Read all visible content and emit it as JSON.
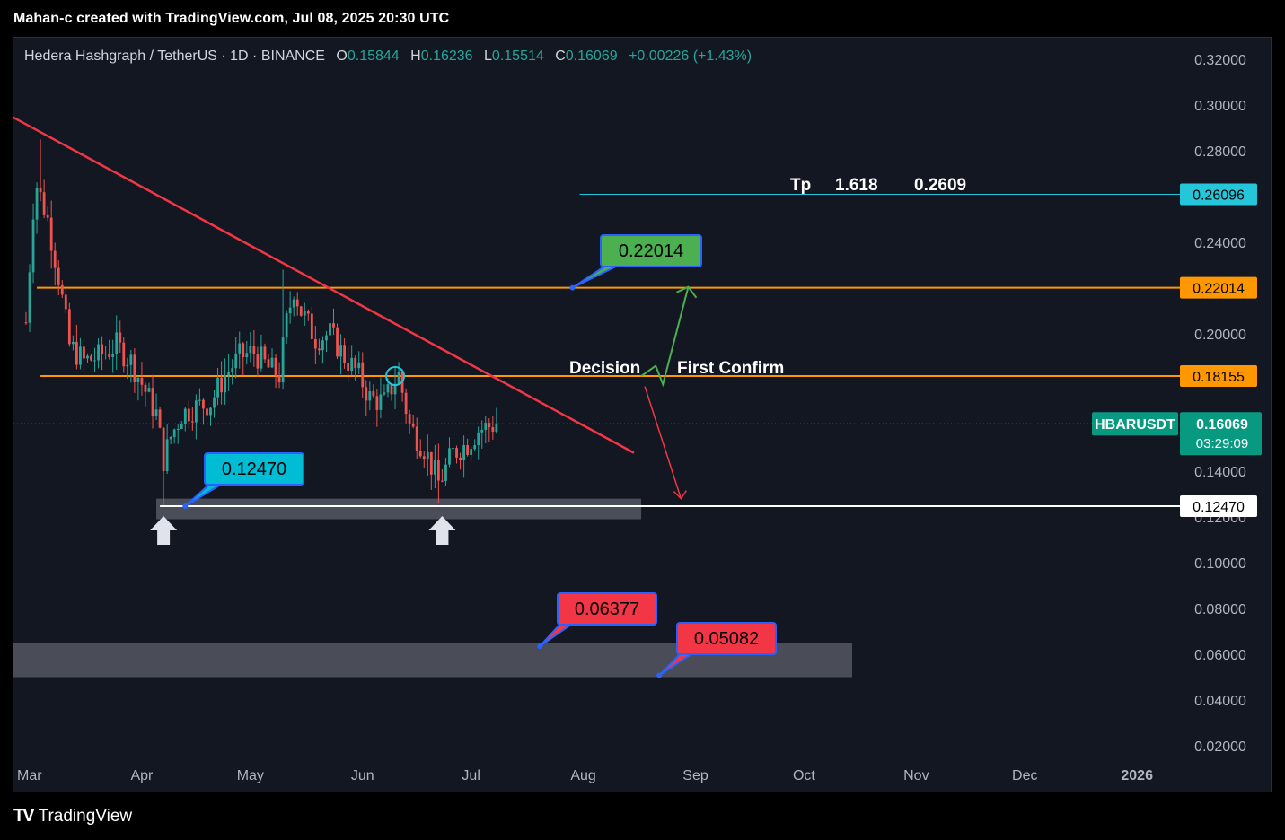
{
  "caption": "Mahan-c created with TradingView.com, Jul 08, 2025 20:30 UTC",
  "legend": {
    "symbol": "Hedera Hashgraph / TetherUS · 1D · BINANCE",
    "o_label": "O",
    "o": "0.15844",
    "h_label": "H",
    "h": "0.16236",
    "l_label": "L",
    "l": "0.15514",
    "c_label": "C",
    "c": "0.16069",
    "change": "+0.00226 (+1.43%)"
  },
  "brand": {
    "logo": "TV",
    "name": "TradingView"
  },
  "colors": {
    "bg": "#131722",
    "up": "#26a69a",
    "down": "#ef5350",
    "orange": "#ff9800",
    "trend": "#f23645",
    "green_arrow": "#4caf50",
    "cyan": "#26c6da",
    "label_green": "#4caf50",
    "label_red": "#f23645",
    "label_blue": "#00bcd4"
  },
  "chart_data": {
    "type": "candlestick",
    "symbol": "HBARUSDT",
    "ylim": [
      0.015,
      0.33
    ],
    "y_ticks": [
      "0.32000",
      "0.30000",
      "0.28000",
      "0.24000",
      "0.20000",
      "0.14000",
      "0.10000",
      "0.08000",
      "0.06000",
      "0.04000",
      "0.02000"
    ],
    "x_ticks": [
      {
        "label": "Mar",
        "date": "2025-03-01"
      },
      {
        "label": "Apr",
        "date": "2025-04-01"
      },
      {
        "label": "May",
        "date": "2025-05-01"
      },
      {
        "label": "Jun",
        "date": "2025-06-01"
      },
      {
        "label": "Jul",
        "date": "2025-07-01"
      },
      {
        "label": "Aug",
        "date": "2025-08-01"
      },
      {
        "label": "Sep",
        "date": "2025-09-01"
      },
      {
        "label": "Oct",
        "date": "2025-10-01"
      },
      {
        "label": "Nov",
        "date": "2025-11-01"
      },
      {
        "label": "Dec",
        "date": "2025-12-01"
      },
      {
        "label": "2026",
        "date": "2026-01-01"
      }
    ],
    "close_path": [
      [
        "2025-02-28",
        0.205
      ],
      [
        "2025-03-02",
        0.255
      ],
      [
        "2025-03-03",
        0.265
      ],
      [
        "2025-03-06",
        0.25
      ],
      [
        "2025-03-09",
        0.225
      ],
      [
        "2025-03-12",
        0.195
      ],
      [
        "2025-03-16",
        0.188
      ],
      [
        "2025-03-20",
        0.19
      ],
      [
        "2025-03-25",
        0.195
      ],
      [
        "2025-03-29",
        0.188
      ],
      [
        "2025-04-02",
        0.175
      ],
      [
        "2025-04-05",
        0.165
      ],
      [
        "2025-04-07",
        0.145
      ],
      [
        "2025-04-09",
        0.155
      ],
      [
        "2025-04-12",
        0.165
      ],
      [
        "2025-04-16",
        0.168
      ],
      [
        "2025-04-20",
        0.17
      ],
      [
        "2025-04-24",
        0.182
      ],
      [
        "2025-04-28",
        0.19
      ],
      [
        "2025-05-02",
        0.192
      ],
      [
        "2025-05-06",
        0.185
      ],
      [
        "2025-05-09",
        0.182
      ],
      [
        "2025-05-11",
        0.205
      ],
      [
        "2025-05-13",
        0.22
      ],
      [
        "2025-05-15",
        0.21
      ],
      [
        "2025-05-19",
        0.198
      ],
      [
        "2025-05-23",
        0.2
      ],
      [
        "2025-05-27",
        0.19
      ],
      [
        "2025-05-31",
        0.182
      ],
      [
        "2025-06-03",
        0.172
      ],
      [
        "2025-06-07",
        0.17
      ],
      [
        "2025-06-10",
        0.18
      ],
      [
        "2025-06-11",
        0.182
      ],
      [
        "2025-06-14",
        0.16
      ],
      [
        "2025-06-18",
        0.15
      ],
      [
        "2025-06-22",
        0.135
      ],
      [
        "2025-06-23",
        0.138
      ],
      [
        "2025-06-26",
        0.148
      ],
      [
        "2025-06-30",
        0.152
      ],
      [
        "2025-07-03",
        0.158
      ],
      [
        "2025-07-08",
        0.16069
      ]
    ],
    "levels": [
      {
        "name": "0.12470",
        "value": 0.1247,
        "color": "white"
      },
      {
        "name": "0.18155",
        "value": 0.18155,
        "color": "orange"
      },
      {
        "name": "0.22014",
        "value": 0.22014,
        "color": "orange"
      },
      {
        "name": "0.26096",
        "value": 0.26096,
        "color": "cyan"
      }
    ],
    "trendline": {
      "from": [
        "2025-02-24",
        0.295
      ],
      "to": [
        "2025-08-15",
        0.148
      ]
    },
    "price_tags": {
      "tp": "0.26096",
      "r2": "0.22014",
      "r1": "0.18155",
      "symbol": "HBARUSDT",
      "last": "0.16069",
      "countdown": "03:29:09",
      "support": "0.12470",
      "hidden_tick": "0.12000"
    },
    "annotations": {
      "tp_text": "Tp",
      "tp_ratio": "1.618",
      "tp_value": "0.2609",
      "decision": "Decision",
      "first_confirm": "First Confirm",
      "callout_top": "0.22014",
      "callout_support": "0.12470",
      "callout_low1": "0.06377",
      "callout_low2": "0.05082"
    },
    "zones": [
      {
        "name": "support-zone",
        "from": 0.119,
        "to": 0.128
      },
      {
        "name": "demand-zone",
        "from": 0.05,
        "to": 0.065
      }
    ]
  }
}
